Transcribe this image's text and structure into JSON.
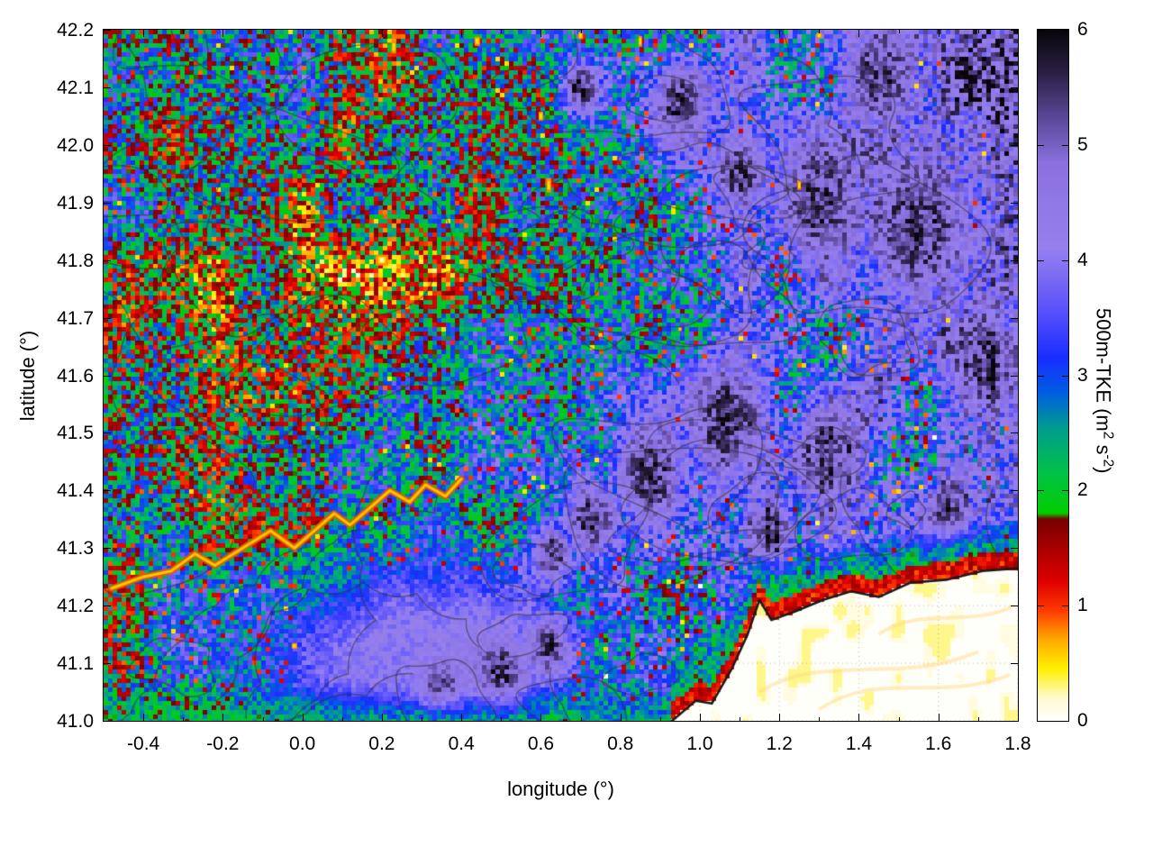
{
  "chart_data": {
    "type": "heatmap",
    "title": "",
    "xlabel": "longitude (°)",
    "ylabel": "latitude (°)",
    "colorbar_label": "500m-TKE (m2 s-2)",
    "cb_label_parts": [
      "500m-TKE (m",
      "2",
      " s",
      "-2",
      ")"
    ],
    "xlim": [
      -0.5,
      1.8
    ],
    "ylim": [
      41.0,
      42.2
    ],
    "clim": [
      0,
      6
    ],
    "x_ticks": [
      {
        "v": -0.4,
        "label": "-0.4"
      },
      {
        "v": -0.2,
        "label": "-0.2"
      },
      {
        "v": 0.0,
        "label": "0.0"
      },
      {
        "v": 0.2,
        "label": "0.2"
      },
      {
        "v": 0.4,
        "label": "0.4"
      },
      {
        "v": 0.6,
        "label": "0.6"
      },
      {
        "v": 0.8,
        "label": "0.8"
      },
      {
        "v": 1.0,
        "label": "1.0"
      },
      {
        "v": 1.2,
        "label": "1.2"
      },
      {
        "v": 1.4,
        "label": "1.4"
      },
      {
        "v": 1.6,
        "label": "1.6"
      },
      {
        "v": 1.8,
        "label": "1.8"
      }
    ],
    "x_minor_step": 0.1,
    "y_ticks": [
      {
        "v": 41.0,
        "label": "41.0"
      },
      {
        "v": 41.1,
        "label": "41.1"
      },
      {
        "v": 41.2,
        "label": "41.2"
      },
      {
        "v": 41.3,
        "label": "41.3"
      },
      {
        "v": 41.4,
        "label": "41.4"
      },
      {
        "v": 41.5,
        "label": "41.5"
      },
      {
        "v": 41.6,
        "label": "41.6"
      },
      {
        "v": 41.7,
        "label": "41.7"
      },
      {
        "v": 41.8,
        "label": "41.8"
      },
      {
        "v": 41.9,
        "label": "41.9"
      },
      {
        "v": 42.0,
        "label": "42.0"
      },
      {
        "v": 42.1,
        "label": "42.1"
      },
      {
        "v": 42.2,
        "label": "42.2"
      }
    ],
    "cb_ticks": [
      {
        "v": 0,
        "label": "0"
      },
      {
        "v": 1,
        "label": "1"
      },
      {
        "v": 2,
        "label": "2"
      },
      {
        "v": 3,
        "label": "3"
      },
      {
        "v": 4,
        "label": "4"
      },
      {
        "v": 5,
        "label": "5"
      },
      {
        "v": 6,
        "label": "6"
      }
    ],
    "palette_stops": [
      [
        0.0,
        [
          255,
          255,
          255
        ]
      ],
      [
        0.2,
        [
          255,
          250,
          205
        ]
      ],
      [
        0.45,
        [
          255,
          240,
          0
        ]
      ],
      [
        0.7,
        [
          255,
          170,
          0
        ]
      ],
      [
        0.95,
        [
          255,
          60,
          0
        ]
      ],
      [
        1.2,
        [
          225,
          0,
          0
        ]
      ],
      [
        1.75,
        [
          120,
          0,
          0
        ]
      ],
      [
        1.8,
        [
          0,
          205,
          0
        ]
      ],
      [
        2.15,
        [
          0,
          195,
          70
        ]
      ],
      [
        2.55,
        [
          0,
          155,
          145
        ]
      ],
      [
        2.85,
        [
          0,
          95,
          225
        ]
      ],
      [
        3.15,
        [
          25,
          45,
          255
        ]
      ],
      [
        3.6,
        [
          95,
          85,
          250
        ]
      ],
      [
        4.1,
        [
          150,
          128,
          238
        ]
      ],
      [
        4.85,
        [
          138,
          112,
          222
        ]
      ],
      [
        5.25,
        [
          90,
          70,
          150
        ]
      ],
      [
        5.65,
        [
          40,
          30,
          65
        ]
      ],
      [
        6.0,
        [
          8,
          6,
          12
        ]
      ]
    ],
    "coastline": [
      [
        0.93,
        41.0
      ],
      [
        0.99,
        41.035
      ],
      [
        1.03,
        41.03
      ],
      [
        1.08,
        41.09
      ],
      [
        1.12,
        41.15
      ],
      [
        1.15,
        41.21
      ],
      [
        1.18,
        41.175
      ],
      [
        1.24,
        41.19
      ],
      [
        1.31,
        41.21
      ],
      [
        1.38,
        41.225
      ],
      [
        1.45,
        41.215
      ],
      [
        1.53,
        41.24
      ],
      [
        1.62,
        41.245
      ],
      [
        1.71,
        41.26
      ],
      [
        1.8,
        41.265
      ]
    ],
    "river_path": [
      [
        -0.48,
        41.23
      ],
      [
        -0.4,
        41.25
      ],
      [
        -0.33,
        41.26
      ],
      [
        -0.27,
        41.29
      ],
      [
        -0.22,
        41.27
      ],
      [
        -0.15,
        41.3
      ],
      [
        -0.08,
        41.33
      ],
      [
        -0.02,
        41.3
      ],
      [
        0.03,
        41.33
      ],
      [
        0.08,
        41.36
      ],
      [
        0.12,
        41.34
      ],
      [
        0.17,
        41.37
      ],
      [
        0.22,
        41.4
      ],
      [
        0.27,
        41.38
      ],
      [
        0.31,
        41.41
      ],
      [
        0.36,
        41.39
      ],
      [
        0.4,
        41.42
      ]
    ],
    "dark_patches": [
      [
        0.73,
        41.35,
        0.07
      ],
      [
        0.63,
        41.29,
        0.05
      ],
      [
        0.87,
        41.43,
        0.09
      ],
      [
        1.07,
        41.52,
        0.1
      ],
      [
        1.33,
        41.46,
        0.09
      ],
      [
        0.5,
        41.08,
        0.06
      ],
      [
        0.62,
        41.13,
        0.05
      ],
      [
        0.35,
        41.05,
        0.05
      ],
      [
        1.3,
        41.9,
        0.1
      ],
      [
        0.95,
        42.07,
        0.07
      ],
      [
        0.7,
        42.1,
        0.05
      ],
      [
        1.55,
        41.85,
        0.12
      ],
      [
        1.72,
        41.62,
        0.09
      ],
      [
        1.45,
        42.12,
        0.08
      ],
      [
        1.1,
        41.95,
        0.06
      ],
      [
        1.62,
        41.35,
        0.07
      ],
      [
        1.18,
        41.33,
        0.06
      ]
    ],
    "smooth_zone": {
      "lon": 0.3,
      "lat": 41.1,
      "sx": 0.33,
      "sy": 0.17,
      "value": 4.15
    },
    "hotspots": [
      [
        0.2,
        41.8,
        14,
        12
      ],
      [
        0.62,
        41.93,
        5,
        16
      ],
      [
        0.6,
        42.05,
        5,
        10
      ],
      [
        0.85,
        42.18,
        4,
        12
      ],
      [
        0.23,
        42.17,
        5,
        14
      ],
      [
        -0.02,
        41.13,
        6,
        6
      ],
      [
        0.75,
        41.67,
        5,
        5
      ],
      [
        1.25,
        41.93,
        4,
        10
      ],
      [
        0.95,
        41.68,
        4,
        4
      ],
      [
        0.48,
        41.5,
        4,
        4
      ],
      [
        1.3,
        42.19,
        6,
        6
      ],
      [
        0.7,
        42.19,
        5,
        8
      ],
      [
        0.44,
        42.18,
        6,
        10
      ]
    ],
    "legend_position": "right colorbar",
    "grid": "dotted, visible over white sea area only",
    "description": "Speckled pseudocolor map of 500 m turbulence kinetic energy (0-6 m2 s-2) over NE Spain: green ~2, blue ~3, violet ~4-5, black ~6, red/orange/yellow below 1.5. Thin dark gray curves are terrain contour lines. The white lower-right region is the Mediterranean Sea, bounded by a black coastline and a red-orange coastal strip; a bright orange-yellow meandering line near 41.3 N follows the Ebro valley."
  }
}
